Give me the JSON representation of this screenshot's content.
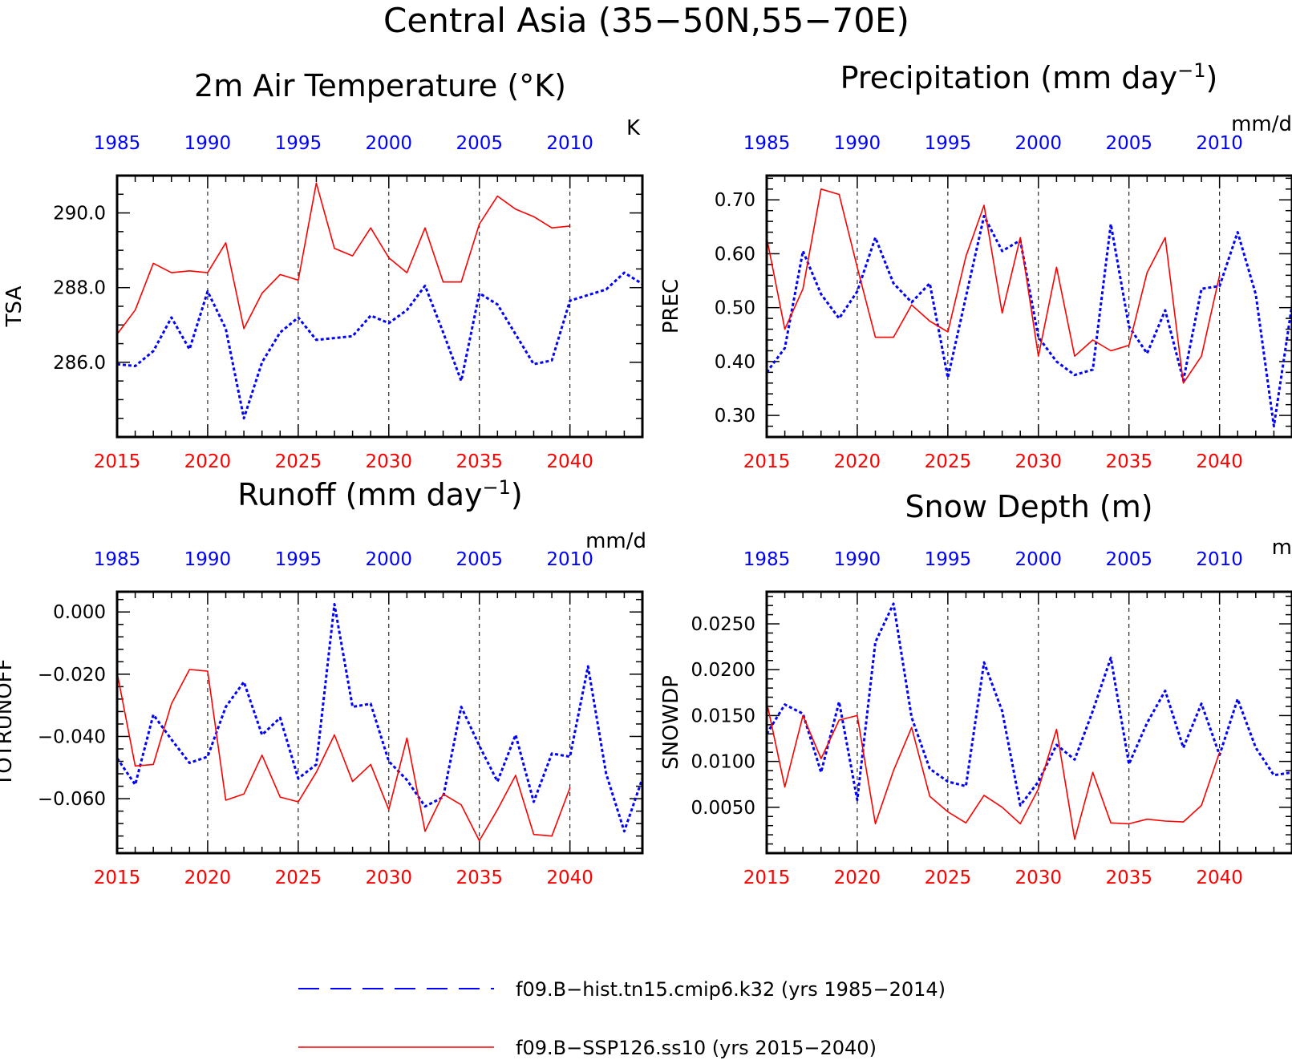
{
  "main_title": "Central Asia (35−50N,55−70E)",
  "colors": {
    "hist": "#0000ff",
    "ssp": "#ff0000",
    "axis": "#000000"
  },
  "legend": [
    {
      "text": "f09.B−hist.tn15.cmip6.k32 (yrs 1985−2014)",
      "color": "#0000ff",
      "style": "dashed"
    },
    {
      "text": "f09.B−SSP126.ss10 (yrs 2015−2040)",
      "color": "#ff0000",
      "style": "solid"
    }
  ],
  "chart_data": [
    {
      "type": "line",
      "title": "2m Air Temperature (°K)",
      "ylabel": "TSA",
      "unit": "K",
      "xlim_bottom": [
        2015,
        2044
      ],
      "xlim_top": [
        1985,
        2014
      ],
      "xticks_bottom": [
        "2015",
        "2020",
        "2025",
        "2030",
        "2035",
        "2040"
      ],
      "xticks_top": [
        "1985",
        "1990",
        "1995",
        "2000",
        "2005",
        "2010"
      ],
      "ylim": [
        284.0,
        291.0
      ],
      "yticks": [
        {
          "v": 286.0,
          "label": "286.0"
        },
        {
          "v": 288.0,
          "label": "288.0"
        },
        {
          "v": 290.0,
          "label": "290.0"
        }
      ],
      "yminor": 0.5,
      "series": [
        {
          "name": "f09.B−hist.tn15.cmip6.k32 (yrs 1985−2014)",
          "axis": "top",
          "x": [
            1985,
            1986,
            1987,
            1988,
            1989,
            1990,
            1991,
            1992,
            1993,
            1994,
            1995,
            1996,
            1997,
            1998,
            1999,
            2000,
            2001,
            2002,
            2003,
            2004,
            2005,
            2006,
            2007,
            2008,
            2009,
            2010,
            2011,
            2012,
            2013,
            2014
          ],
          "y": [
            285.95,
            285.9,
            286.3,
            287.2,
            286.35,
            287.9,
            286.9,
            284.5,
            286.0,
            286.8,
            287.2,
            286.6,
            286.65,
            286.7,
            287.25,
            287.05,
            287.4,
            288.05,
            286.8,
            285.5,
            287.85,
            287.55,
            286.75,
            285.95,
            286.05,
            287.65,
            287.8,
            287.95,
            288.4,
            288.1
          ]
        },
        {
          "name": "f09.B−SSP126.ss10 (yrs 2015−2040)",
          "axis": "bottom",
          "x": [
            2015,
            2016,
            2017,
            2018,
            2019,
            2020,
            2021,
            2022,
            2023,
            2024,
            2025,
            2026,
            2027,
            2028,
            2029,
            2030,
            2031,
            2032,
            2033,
            2034,
            2035,
            2036,
            2037,
            2038,
            2039,
            2040
          ],
          "y": [
            286.75,
            287.4,
            288.65,
            288.4,
            288.45,
            288.4,
            289.2,
            286.9,
            287.85,
            288.35,
            288.2,
            290.8,
            289.05,
            288.85,
            289.6,
            288.8,
            288.4,
            289.6,
            288.15,
            288.15,
            289.7,
            290.45,
            290.1,
            289.9,
            289.6,
            289.65
          ]
        }
      ]
    },
    {
      "type": "line",
      "title": "Precipitation (mm day⁻¹)",
      "ylabel": "PREC",
      "unit": "mm/d",
      "xlim_bottom": [
        2015,
        2044
      ],
      "xlim_top": [
        1985,
        2014
      ],
      "xticks_bottom": [
        "2015",
        "2020",
        "2025",
        "2030",
        "2035",
        "2040"
      ],
      "xticks_top": [
        "1985",
        "1990",
        "1995",
        "2000",
        "2005",
        "2010"
      ],
      "ylim": [
        0.26,
        0.745
      ],
      "yticks": [
        {
          "v": 0.3,
          "label": "0.30"
        },
        {
          "v": 0.4,
          "label": "0.40"
        },
        {
          "v": 0.5,
          "label": "0.50"
        },
        {
          "v": 0.6,
          "label": "0.60"
        },
        {
          "v": 0.7,
          "label": "0.70"
        }
      ],
      "yminor": 0.02,
      "series": [
        {
          "name": "f09.B−hist.tn15.cmip6.k32 (yrs 1985−2014)",
          "axis": "top",
          "x": [
            1985,
            1986,
            1987,
            1988,
            1989,
            1990,
            1991,
            1992,
            1993,
            1994,
            1995,
            1996,
            1997,
            1998,
            1999,
            2000,
            2001,
            2002,
            2003,
            2004,
            2005,
            2006,
            2007,
            2008,
            2009,
            2010,
            2011,
            2012,
            2013,
            2014
          ],
          "y": [
            0.38,
            0.425,
            0.605,
            0.525,
            0.48,
            0.53,
            0.63,
            0.545,
            0.51,
            0.545,
            0.37,
            0.52,
            0.67,
            0.605,
            0.625,
            0.445,
            0.4,
            0.375,
            0.385,
            0.655,
            0.465,
            0.415,
            0.495,
            0.365,
            0.535,
            0.54,
            0.64,
            0.525,
            0.28,
            0.505
          ]
        },
        {
          "name": "f09.B−SSP126.ss10 (yrs 2015−2040)",
          "axis": "bottom",
          "x": [
            2015,
            2016,
            2017,
            2018,
            2019,
            2020,
            2021,
            2022,
            2023,
            2024,
            2025,
            2026,
            2027,
            2028,
            2029,
            2030,
            2031,
            2032,
            2033,
            2034,
            2035,
            2036,
            2037,
            2038,
            2039,
            2040
          ],
          "y": [
            0.63,
            0.46,
            0.535,
            0.72,
            0.71,
            0.575,
            0.445,
            0.445,
            0.505,
            0.475,
            0.455,
            0.595,
            0.69,
            0.49,
            0.63,
            0.41,
            0.575,
            0.41,
            0.44,
            0.42,
            0.43,
            0.565,
            0.63,
            0.36,
            0.41,
            0.56
          ]
        }
      ]
    },
    {
      "type": "line",
      "title": "Runoff (mm day⁻¹)",
      "ylabel": "TOTRUNOFF",
      "unit": "mm/d",
      "xlim_bottom": [
        2015,
        2044
      ],
      "xlim_top": [
        1985,
        2014
      ],
      "xticks_bottom": [
        "2015",
        "2020",
        "2025",
        "2030",
        "2035",
        "2040"
      ],
      "xticks_top": [
        "1985",
        "1990",
        "1995",
        "2000",
        "2005",
        "2010"
      ],
      "ylim": [
        -0.0775,
        0.0065
      ],
      "yticks": [
        {
          "v": -0.06,
          "label": "−0.060"
        },
        {
          "v": -0.04,
          "label": "−0.040"
        },
        {
          "v": -0.02,
          "label": "−0.020"
        },
        {
          "v": 0.0,
          "label": "0.000"
        }
      ],
      "yminor": 0.004,
      "series": [
        {
          "name": "f09.B−hist.tn15.cmip6.k32 (yrs 1985−2014)",
          "axis": "top",
          "x": [
            1985,
            1986,
            1987,
            1988,
            1989,
            1990,
            1991,
            1992,
            1993,
            1994,
            1995,
            1996,
            1997,
            1998,
            1999,
            2000,
            2001,
            2002,
            2003,
            2004,
            2005,
            2006,
            2007,
            2008,
            2009,
            2010,
            2011,
            2012,
            2013,
            2014
          ],
          "y": [
            -0.047,
            -0.0555,
            -0.033,
            -0.041,
            -0.0485,
            -0.0465,
            -0.0305,
            -0.0225,
            -0.0395,
            -0.034,
            -0.0535,
            -0.049,
            0.0025,
            -0.0305,
            -0.0295,
            -0.048,
            -0.054,
            -0.0625,
            -0.0595,
            -0.0305,
            -0.043,
            -0.0545,
            -0.0395,
            -0.061,
            -0.0455,
            -0.0465,
            -0.0175,
            -0.052,
            -0.0705,
            -0.0535
          ]
        },
        {
          "name": "f09.B−SSP126.ss10 (yrs 2015−2040)",
          "axis": "bottom",
          "x": [
            2015,
            2016,
            2017,
            2018,
            2019,
            2020,
            2021,
            2022,
            2023,
            2024,
            2025,
            2026,
            2027,
            2028,
            2029,
            2030,
            2031,
            2032,
            2033,
            2034,
            2035,
            2036,
            2037,
            2038,
            2039,
            2040
          ],
          "y": [
            -0.0195,
            -0.0495,
            -0.049,
            -0.0295,
            -0.0185,
            -0.019,
            -0.0605,
            -0.0585,
            -0.046,
            -0.0595,
            -0.061,
            -0.0515,
            -0.0395,
            -0.0545,
            -0.049,
            -0.0635,
            -0.0405,
            -0.0705,
            -0.0585,
            -0.062,
            -0.0735,
            -0.0635,
            -0.0525,
            -0.0715,
            -0.072,
            -0.0565
          ]
        }
      ]
    },
    {
      "type": "line",
      "title": "Snow Depth (m)",
      "ylabel": "SNOWDP",
      "unit": "m",
      "xlim_bottom": [
        2015,
        2044
      ],
      "xlim_top": [
        1985,
        2014
      ],
      "xticks_bottom": [
        "2015",
        "2020",
        "2025",
        "2030",
        "2035",
        "2040"
      ],
      "xticks_top": [
        "1985",
        "1990",
        "1995",
        "2000",
        "2005",
        "2010"
      ],
      "ylim": [
        0.0,
        0.0285
      ],
      "yticks": [
        {
          "v": 0.005,
          "label": "0.0050"
        },
        {
          "v": 0.01,
          "label": "0.0100"
        },
        {
          "v": 0.015,
          "label": "0.0150"
        },
        {
          "v": 0.02,
          "label": "0.0200"
        },
        {
          "v": 0.025,
          "label": "0.0250"
        }
      ],
      "yminor": 0.001,
      "series": [
        {
          "name": "f09.B−hist.tn15.cmip6.k32 (yrs 1985−2014)",
          "axis": "top",
          "x": [
            1985,
            1986,
            1987,
            1988,
            1989,
            1990,
            1991,
            1992,
            1993,
            1994,
            1995,
            1996,
            1997,
            1998,
            1999,
            2000,
            2001,
            2002,
            2003,
            2004,
            2005,
            2006,
            2007,
            2008,
            2009,
            2010,
            2011,
            2012,
            2013,
            2014
          ],
          "y": [
            0.013,
            0.0162,
            0.0152,
            0.0088,
            0.0165,
            0.0058,
            0.023,
            0.0272,
            0.0148,
            0.0092,
            0.0078,
            0.0073,
            0.0208,
            0.0155,
            0.0052,
            0.0078,
            0.0118,
            0.0102,
            0.0155,
            0.0213,
            0.0097,
            0.0142,
            0.0177,
            0.0115,
            0.0163,
            0.0107,
            0.0168,
            0.0115,
            0.0085,
            0.0088
          ]
        },
        {
          "name": "f09.B−SSP126.ss10 (yrs 2015−2040)",
          "axis": "bottom",
          "x": [
            2015,
            2016,
            2017,
            2018,
            2019,
            2020,
            2021,
            2022,
            2023,
            2024,
            2025,
            2026,
            2027,
            2028,
            2029,
            2030,
            2031,
            2032,
            2033,
            2034,
            2035,
            2036,
            2037,
            2038,
            2039,
            2040
          ],
          "y": [
            0.0165,
            0.0072,
            0.015,
            0.0103,
            0.0145,
            0.015,
            0.0032,
            0.009,
            0.0137,
            0.0062,
            0.0045,
            0.0033,
            0.0063,
            0.005,
            0.0032,
            0.007,
            0.0135,
            0.0015,
            0.0088,
            0.0033,
            0.0032,
            0.0037,
            0.0035,
            0.0034,
            0.0052,
            0.011
          ]
        }
      ]
    }
  ]
}
